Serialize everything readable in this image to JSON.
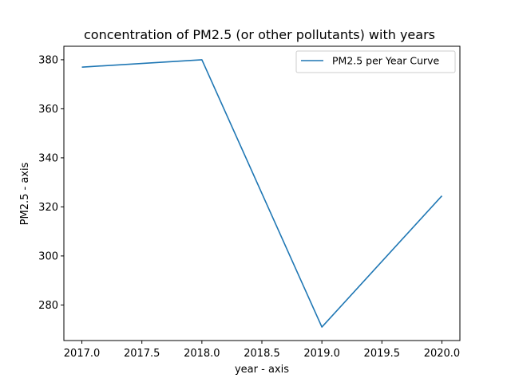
{
  "chart_data": {
    "type": "line",
    "title": "concentration of PM2.5 (or other pollutants) with years",
    "xlabel": "year - axis",
    "ylabel": "PM2.5 - axis",
    "x": [
      2017,
      2018,
      2019,
      2020
    ],
    "series": [
      {
        "name": "PM2.5 per Year Curve",
        "values": [
          377,
          380,
          271,
          324.5
        ],
        "color": "#1f77b4"
      }
    ],
    "xlim": [
      2016.85,
      2020.15
    ],
    "ylim": [
      265.5,
      385.5
    ],
    "xticks": [
      2017.0,
      2017.5,
      2018.0,
      2018.5,
      2019.0,
      2019.5,
      2020.0
    ],
    "xtick_labels": [
      "2017.0",
      "2017.5",
      "2018.0",
      "2018.5",
      "2019.0",
      "2019.5",
      "2020.0"
    ],
    "yticks": [
      280,
      300,
      320,
      340,
      360,
      380
    ],
    "ytick_labels": [
      "280",
      "300",
      "320",
      "340",
      "360",
      "380"
    ],
    "grid": false,
    "legend_position": "upper right"
  }
}
